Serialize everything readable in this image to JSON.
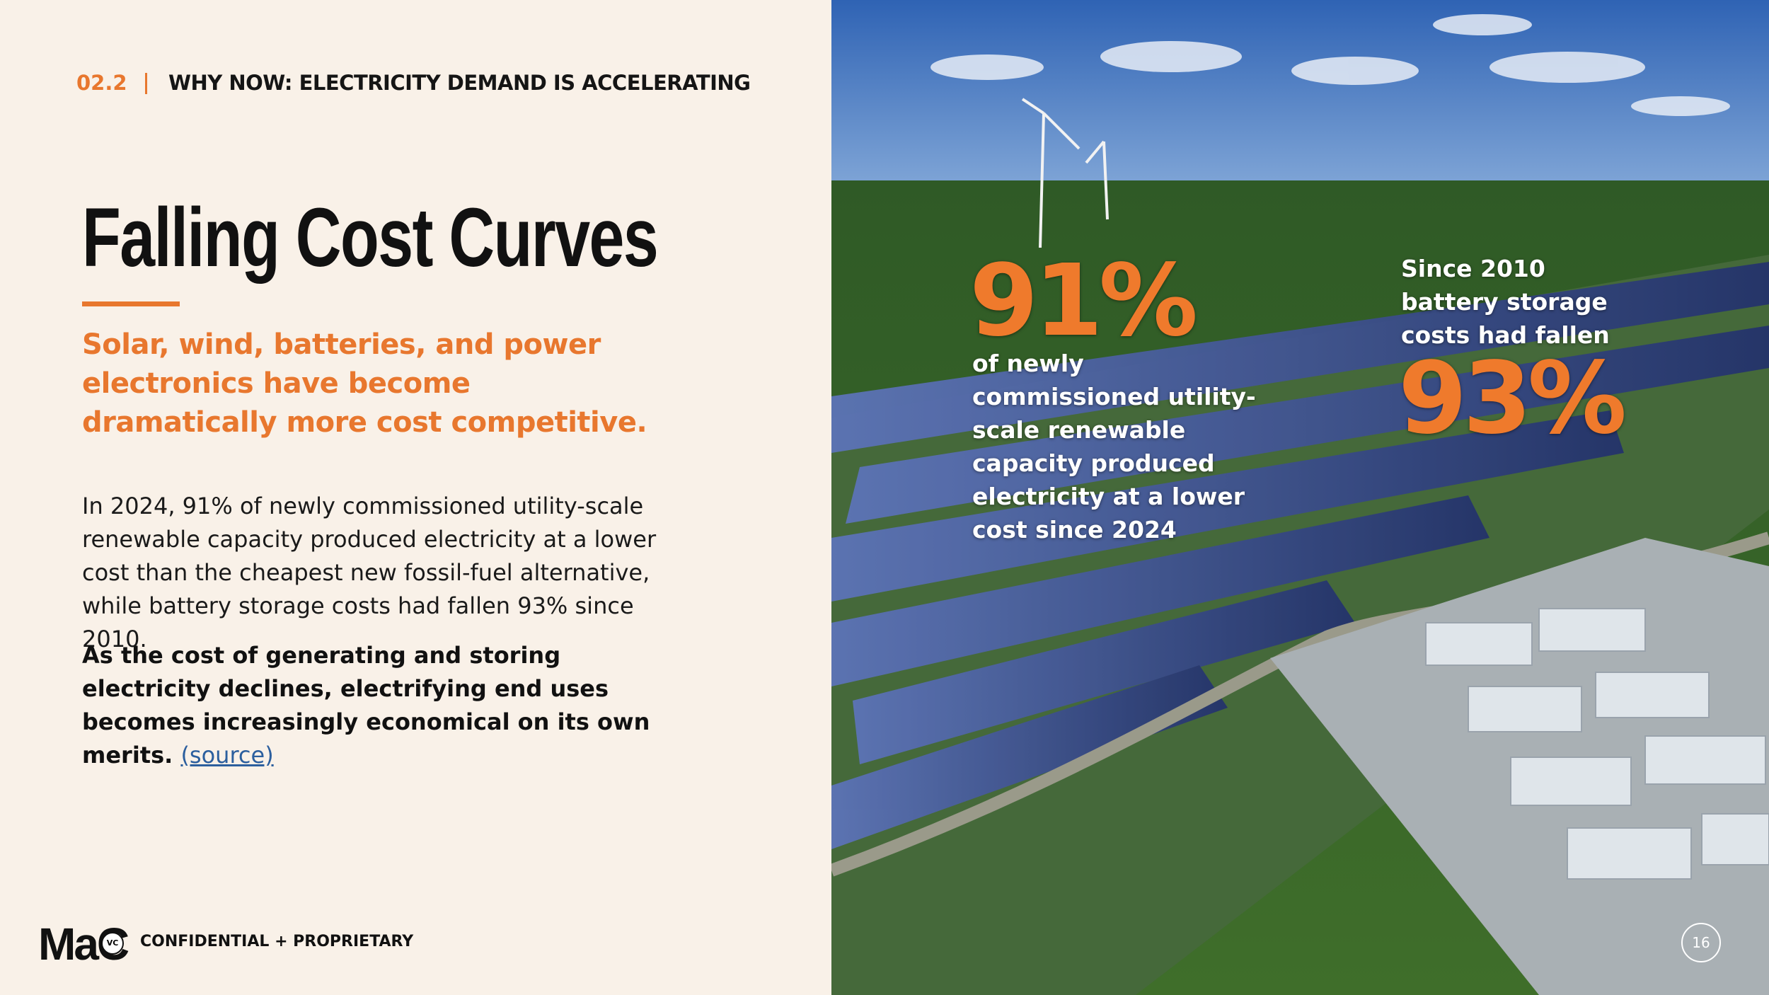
{
  "header": {
    "section": "02.2",
    "title": "WHY NOW: ELECTRICITY DEMAND IS ACCELERATING"
  },
  "title": "Falling Cost Curves",
  "subtitle": "Solar, wind, batteries, and power electronics have become dramatically more cost competitive.",
  "body": "In 2024, 91% of newly commissioned utility-scale renewable capacity produced electricity at a lower cost than the cheapest new fossil-fuel alternative, while battery storage costs had fallen 93% since 2010.",
  "conclusion": {
    "text": "As the cost of generating and storing electricity declines, electrifying end uses becomes increasingly economical on its own merits.",
    "link": "(source)"
  },
  "stats": [
    {
      "value": "91%",
      "caption": "of newly commissioned utility-scale renewable capacity produced electricity at a lower cost since 2024"
    },
    {
      "lead": "Since 2010 battery storage costs had fallen",
      "value": "93%"
    }
  ],
  "footer": {
    "logo": "MaC",
    "logo_badge": "VC",
    "label": "CONFIDENTIAL + PROPRIETARY",
    "page": "16"
  }
}
